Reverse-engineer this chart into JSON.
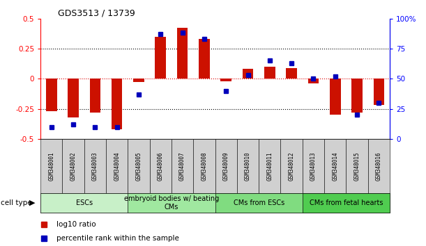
{
  "title": "GDS3513 / 13739",
  "samples": [
    "GSM348001",
    "GSM348002",
    "GSM348003",
    "GSM348004",
    "GSM348005",
    "GSM348006",
    "GSM348007",
    "GSM348008",
    "GSM348009",
    "GSM348010",
    "GSM348011",
    "GSM348012",
    "GSM348013",
    "GSM348014",
    "GSM348015",
    "GSM348016"
  ],
  "log10_ratio": [
    -0.27,
    -0.32,
    -0.28,
    -0.42,
    -0.03,
    0.35,
    0.42,
    0.33,
    -0.02,
    0.08,
    0.1,
    0.09,
    -0.04,
    -0.3,
    -0.28,
    -0.22
  ],
  "percentile_rank": [
    10,
    12,
    10,
    10,
    37,
    87,
    88,
    83,
    40,
    53,
    65,
    63,
    50,
    52,
    20,
    30
  ],
  "cell_type_groups": [
    {
      "label": "ESCs",
      "start": 0,
      "end": 4,
      "color": "#c8f0c8"
    },
    {
      "label": "embryoid bodies w/ beating\nCMs",
      "start": 4,
      "end": 8,
      "color": "#a0e8a0"
    },
    {
      "label": "CMs from ESCs",
      "start": 8,
      "end": 12,
      "color": "#80dc80"
    },
    {
      "label": "CMs from fetal hearts",
      "start": 12,
      "end": 16,
      "color": "#50cc50"
    }
  ],
  "bar_color_red": "#cc1100",
  "dot_color_blue": "#0000bb",
  "ylim_left": [
    -0.5,
    0.5
  ],
  "ylim_right": [
    0,
    100
  ],
  "yticks_left": [
    -0.5,
    -0.25,
    0,
    0.25,
    0.5
  ],
  "ytick_labels_left": [
    "-0.5",
    "-0.25",
    "0",
    "0.25",
    "0.5"
  ],
  "yticks_right": [
    0,
    25,
    50,
    75,
    100
  ],
  "ytick_labels_right": [
    "0",
    "25",
    "50",
    "75",
    "100%"
  ],
  "hlines_dotted": [
    -0.25,
    0.25
  ],
  "zero_line_color": "#dd0000",
  "legend_red_label": "log10 ratio",
  "legend_blue_label": "percentile rank within the sample",
  "cell_type_label": "cell type",
  "sample_box_color": "#d0d0d0",
  "background_color": "#ffffff"
}
